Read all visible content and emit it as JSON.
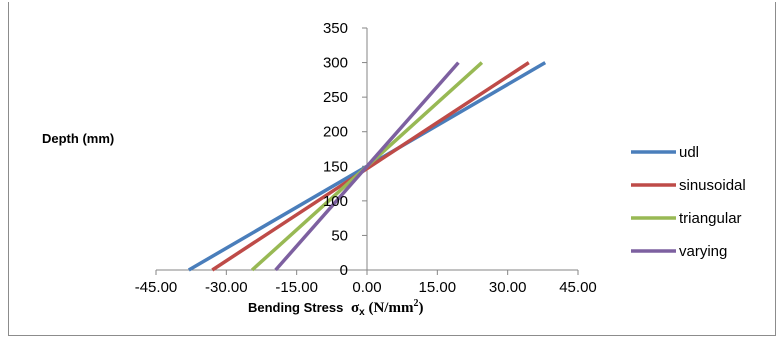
{
  "chart_data": {
    "type": "line",
    "xlabel": "Bending Stress",
    "xlabel_symbol": "σ",
    "xlabel_sub": "x",
    "xlabel_unit_pre": " (N/mm",
    "xlabel_unit_sup": "2",
    "xlabel_unit_post": ")",
    "ylabel": "Depth (mm)",
    "xlim": [
      -45,
      45
    ],
    "ylim": [
      0,
      350
    ],
    "x_ticks": [
      -45,
      -30,
      -15,
      0,
      15,
      30,
      45
    ],
    "x_tick_labels": [
      "-45.00",
      "-30.00",
      "-15.00",
      "0.00",
      "15.00",
      "30.00",
      "45.00"
    ],
    "y_ticks": [
      0,
      50,
      100,
      150,
      200,
      250,
      300,
      350
    ],
    "y_tick_labels": [
      "0",
      "50",
      "100",
      "150",
      "200",
      "250",
      "300",
      "350"
    ],
    "grid": false,
    "legend_position": "right",
    "series": [
      {
        "name": "udl",
        "color": "#4a7ebb",
        "points": [
          [
            -38,
            0
          ],
          [
            38,
            300
          ]
        ]
      },
      {
        "name": "sinusoidal",
        "color": "#be4b48",
        "points": [
          [
            -33,
            0
          ],
          [
            34.5,
            300
          ]
        ]
      },
      {
        "name": "triangular",
        "color": "#98b954",
        "points": [
          [
            -24.5,
            0
          ],
          [
            24.5,
            300
          ]
        ]
      },
      {
        "name": "varying",
        "color": "#7d60a0",
        "points": [
          [
            -19.5,
            0
          ],
          [
            19.5,
            300
          ]
        ]
      }
    ]
  }
}
